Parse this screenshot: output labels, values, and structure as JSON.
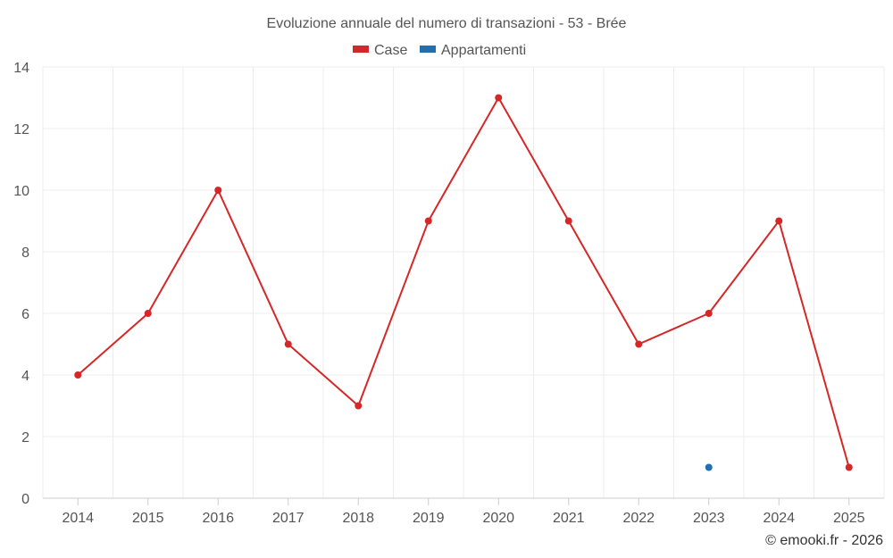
{
  "chart_data": {
    "type": "line",
    "title": "Evoluzione annuale del numero di transazioni - 53 - Brée",
    "categories": [
      "2014",
      "2015",
      "2016",
      "2017",
      "2018",
      "2019",
      "2020",
      "2021",
      "2022",
      "2023",
      "2024",
      "2025"
    ],
    "series": [
      {
        "name": "Case",
        "color": "#d62728",
        "values": [
          4,
          6,
          10,
          5,
          3,
          9,
          13,
          9,
          5,
          6,
          9,
          1
        ]
      },
      {
        "name": "Appartamenti",
        "color": "#1f6fb2",
        "values": [
          null,
          null,
          null,
          null,
          null,
          null,
          null,
          null,
          null,
          1,
          null,
          null
        ]
      }
    ],
    "ylim": [
      0,
      14
    ],
    "yticks": [
      0,
      2,
      4,
      6,
      8,
      10,
      12,
      14
    ],
    "grid": true,
    "legend": "top-center"
  },
  "credit": "© emooki.fr - 2026"
}
